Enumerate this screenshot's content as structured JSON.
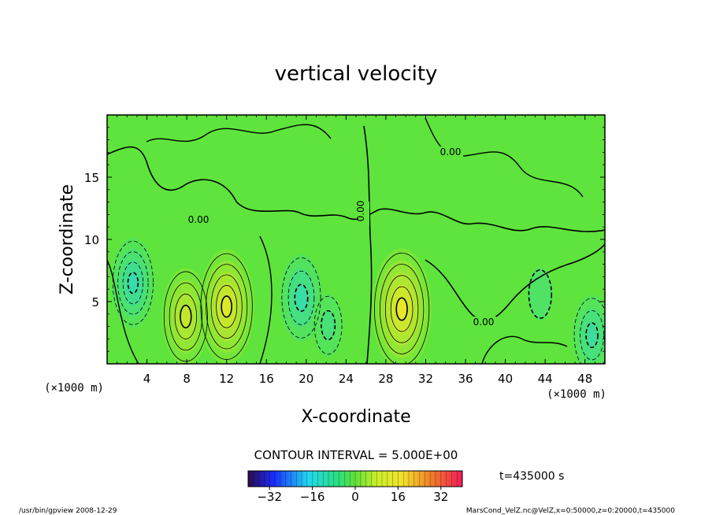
{
  "chart_data": {
    "type": "heatmap",
    "title": "vertical velocity",
    "xlabel": "X-coordinate",
    "ylabel": "Z-coordinate",
    "x_unit_left": "(×1000 m)",
    "x_unit_right": "(×1000 m)",
    "xlim": [
      0,
      50
    ],
    "ylim": [
      0,
      20
    ],
    "x_ticks": [
      4,
      8,
      12,
      16,
      20,
      24,
      28,
      32,
      36,
      40,
      44,
      48
    ],
    "y_ticks": [
      5,
      10,
      15
    ],
    "contour_interval_text": "CONTOUR INTERVAL = 5.000E+00",
    "contour_labels": [
      "0.00",
      "0.00",
      "0.00",
      "0.00"
    ],
    "time_text": "t=435000 s",
    "colorbar": {
      "min": -40,
      "max": 40,
      "ticks": [
        -32,
        -16,
        0,
        16,
        32
      ],
      "tick_labels": [
        "−32",
        "−16",
        "0",
        "16",
        "32"
      ]
    },
    "features": [
      {
        "x": 7.9,
        "z": 3.8,
        "value": 20,
        "sign": "positive"
      },
      {
        "x": 12.0,
        "z": 4.6,
        "value": 25,
        "sign": "positive"
      },
      {
        "x": 29.6,
        "z": 4.4,
        "value": 27,
        "sign": "positive"
      },
      {
        "x": 2.6,
        "z": 6.5,
        "value": -18,
        "sign": "negative"
      },
      {
        "x": 19.5,
        "z": 5.3,
        "value": -17,
        "sign": "negative"
      },
      {
        "x": 22.2,
        "z": 3.1,
        "value": -10,
        "sign": "negative"
      },
      {
        "x": 48.7,
        "z": 2.3,
        "value": -15,
        "sign": "negative"
      },
      {
        "x": 43.5,
        "z": 5.6,
        "value": -7,
        "sign": "negative"
      }
    ]
  },
  "footer": {
    "left": "/usr/bin/gpview  2008-12-29",
    "right": "MarsCond_VelZ.nc@VelZ,x=0:50000,z=0:20000,t=435000"
  }
}
